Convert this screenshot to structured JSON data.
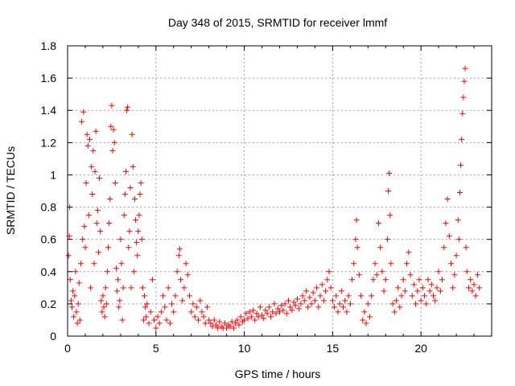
{
  "chart_data": {
    "type": "scatter",
    "title": "Day 348 of 2015, SRMTID for receiver lmmf",
    "xlabel": "GPS time / hours",
    "ylabel": "SRMTID / TECUs",
    "xlim": [
      0,
      24
    ],
    "ylim": [
      0,
      1.8
    ],
    "xticks": [
      0,
      5,
      10,
      15,
      20
    ],
    "yticks": [
      0,
      0.2,
      0.4,
      0.6,
      0.8,
      1,
      1.2,
      1.4,
      1.6,
      1.8
    ],
    "ytick_labels": [
      "0",
      "0.2",
      "0.4",
      "0.6",
      "0.8",
      "1",
      "1.2",
      "1.4",
      "1.6",
      "1.8"
    ],
    "grid": true,
    "marker": "+",
    "color": "#ff0000",
    "series": [
      {
        "name": "SRMTID",
        "points": [
          [
            0.05,
            0.5
          ],
          [
            0.1,
            0.62
          ],
          [
            0.12,
            0.8
          ],
          [
            0.15,
            0.35
          ],
          [
            0.2,
            0.22
          ],
          [
            0.25,
            0.18
          ],
          [
            0.3,
            0.28
          ],
          [
            0.35,
            0.12
          ],
          [
            0.4,
            0.25
          ],
          [
            0.45,
            0.4
          ],
          [
            0.5,
            0.15
          ],
          [
            0.55,
            0.08
          ],
          [
            0.6,
            0.2
          ],
          [
            0.65,
            0.33
          ],
          [
            0.7,
            0.1
          ],
          [
            0.75,
            0.45
          ],
          [
            0.8,
            1.33
          ],
          [
            0.85,
            0.6
          ],
          [
            0.9,
            1.39
          ],
          [
            0.95,
            0.68
          ],
          [
            1.0,
            0.55
          ],
          [
            1.05,
            0.95
          ],
          [
            1.1,
            1.25
          ],
          [
            1.15,
            1.18
          ],
          [
            1.2,
            0.75
          ],
          [
            1.25,
            1.22
          ],
          [
            1.3,
            0.3
          ],
          [
            1.35,
            1.05
          ],
          [
            1.4,
            0.88
          ],
          [
            1.45,
            1.15
          ],
          [
            1.5,
            0.45
          ],
          [
            1.55,
            1.02
          ],
          [
            1.6,
            1.27
          ],
          [
            1.65,
            0.7
          ],
          [
            1.7,
            0.78
          ],
          [
            1.75,
            0.52
          ],
          [
            1.8,
            0.98
          ],
          [
            1.85,
            0.65
          ],
          [
            1.9,
            0.22
          ],
          [
            1.95,
            0.15
          ],
          [
            2.0,
            0.25
          ],
          [
            2.05,
            0.18
          ],
          [
            2.1,
            0.12
          ],
          [
            2.15,
            0.3
          ],
          [
            2.2,
            0.2
          ],
          [
            2.25,
            0.4
          ],
          [
            2.3,
            0.55
          ],
          [
            2.35,
            0.7
          ],
          [
            2.4,
            0.85
          ],
          [
            2.45,
            1.3
          ],
          [
            2.5,
            1.43
          ],
          [
            2.55,
            1.15
          ],
          [
            2.6,
            1.28
          ],
          [
            2.65,
            1.2
          ],
          [
            2.7,
            0.95
          ],
          [
            2.75,
            0.42
          ],
          [
            2.8,
            0.28
          ],
          [
            2.85,
            0.35
          ],
          [
            2.9,
            0.18
          ],
          [
            2.95,
            0.22
          ],
          [
            3.0,
            0.6
          ],
          [
            3.05,
            0.45
          ],
          [
            3.1,
            0.1
          ],
          [
            3.15,
            0.3
          ],
          [
            3.2,
            0.75
          ],
          [
            3.25,
            0.88
          ],
          [
            3.3,
            1.02
          ],
          [
            3.35,
            1.4
          ],
          [
            3.4,
            1.42
          ],
          [
            3.45,
            0.55
          ],
          [
            3.5,
            0.65
          ],
          [
            3.55,
            0.92
          ],
          [
            3.6,
            0.3
          ],
          [
            3.65,
            1.25
          ],
          [
            3.7,
            1.05
          ],
          [
            3.75,
            0.4
          ],
          [
            3.8,
            0.85
          ],
          [
            3.85,
            0.72
          ],
          [
            3.9,
            0.58
          ],
          [
            3.95,
            0.5
          ],
          [
            4.0,
            0.65
          ],
          [
            4.05,
            0.75
          ],
          [
            4.1,
            0.88
          ],
          [
            4.15,
            0.95
          ],
          [
            4.2,
            0.6
          ],
          [
            4.25,
            0.3
          ],
          [
            4.3,
            0.1
          ],
          [
            4.35,
            0.25
          ],
          [
            4.4,
            0.18
          ],
          [
            4.45,
            0.12
          ],
          [
            4.5,
            0.2
          ],
          [
            4.6,
            0.08
          ],
          [
            4.7,
            0.15
          ],
          [
            4.8,
            0.35
          ],
          [
            4.9,
            0.1
          ],
          [
            5.0,
            0.05
          ],
          [
            5.1,
            0.12
          ],
          [
            5.2,
            0.08
          ],
          [
            5.3,
            0.15
          ],
          [
            5.4,
            0.25
          ],
          [
            5.5,
            0.18
          ],
          [
            5.6,
            0.1
          ],
          [
            5.7,
            0.3
          ],
          [
            5.8,
            0.08
          ],
          [
            5.9,
            0.2
          ],
          [
            6.0,
            0.15
          ],
          [
            6.1,
            0.25
          ],
          [
            6.2,
            0.4
          ],
          [
            6.3,
            0.5
          ],
          [
            6.35,
            0.54
          ],
          [
            6.4,
            0.35
          ],
          [
            6.5,
            0.22
          ],
          [
            6.6,
            0.3
          ],
          [
            6.7,
            0.45
          ],
          [
            6.8,
            0.38
          ],
          [
            6.9,
            0.25
          ],
          [
            7.0,
            0.15
          ],
          [
            7.1,
            0.2
          ],
          [
            7.2,
            0.12
          ],
          [
            7.3,
            0.18
          ],
          [
            7.4,
            0.1
          ],
          [
            7.5,
            0.22
          ],
          [
            7.6,
            0.15
          ],
          [
            7.7,
            0.12
          ],
          [
            7.8,
            0.08
          ],
          [
            7.9,
            0.18
          ],
          [
            8.0,
            0.1
          ],
          [
            8.1,
            0.08
          ],
          [
            8.2,
            0.06
          ],
          [
            8.3,
            0.1
          ],
          [
            8.4,
            0.07
          ],
          [
            8.5,
            0.05
          ],
          [
            8.6,
            0.09
          ],
          [
            8.7,
            0.06
          ],
          [
            8.8,
            0.05
          ],
          [
            8.9,
            0.08
          ],
          [
            9.0,
            0.05
          ],
          [
            9.1,
            0.07
          ],
          [
            9.2,
            0.06
          ],
          [
            9.3,
            0.09
          ],
          [
            9.4,
            0.05
          ],
          [
            9.5,
            0.08
          ],
          [
            9.6,
            0.1
          ],
          [
            9.7,
            0.07
          ],
          [
            9.8,
            0.12
          ],
          [
            9.9,
            0.09
          ],
          [
            10.0,
            0.1
          ],
          [
            10.1,
            0.14
          ],
          [
            10.2,
            0.11
          ],
          [
            10.3,
            0.15
          ],
          [
            10.4,
            0.12
          ],
          [
            10.5,
            0.16
          ],
          [
            10.6,
            0.1
          ],
          [
            10.7,
            0.14
          ],
          [
            10.8,
            0.12
          ],
          [
            10.9,
            0.18
          ],
          [
            11.0,
            0.13
          ],
          [
            11.1,
            0.11
          ],
          [
            11.2,
            0.16
          ],
          [
            11.3,
            0.14
          ],
          [
            11.4,
            0.18
          ],
          [
            11.5,
            0.12
          ],
          [
            11.6,
            0.15
          ],
          [
            11.7,
            0.2
          ],
          [
            11.8,
            0.14
          ],
          [
            11.9,
            0.17
          ],
          [
            12.0,
            0.15
          ],
          [
            12.1,
            0.19
          ],
          [
            12.2,
            0.16
          ],
          [
            12.3,
            0.2
          ],
          [
            12.4,
            0.14
          ],
          [
            12.5,
            0.22
          ],
          [
            12.6,
            0.18
          ],
          [
            12.7,
            0.16
          ],
          [
            12.8,
            0.21
          ],
          [
            12.9,
            0.19
          ],
          [
            13.0,
            0.23
          ],
          [
            13.1,
            0.17
          ],
          [
            13.2,
            0.2
          ],
          [
            13.3,
            0.25
          ],
          [
            13.4,
            0.22
          ],
          [
            13.5,
            0.28
          ],
          [
            13.6,
            0.18
          ],
          [
            13.7,
            0.24
          ],
          [
            13.8,
            0.2
          ],
          [
            13.9,
            0.27
          ],
          [
            14.0,
            0.22
          ],
          [
            14.1,
            0.3
          ],
          [
            14.2,
            0.18
          ],
          [
            14.3,
            0.25
          ],
          [
            14.4,
            0.32
          ],
          [
            14.5,
            0.22
          ],
          [
            14.6,
            0.28
          ],
          [
            14.7,
            0.35
          ],
          [
            14.8,
            0.4
          ],
          [
            14.9,
            0.3
          ],
          [
            15.0,
            0.22
          ],
          [
            15.1,
            0.18
          ],
          [
            15.2,
            0.25
          ],
          [
            15.3,
            0.15
          ],
          [
            15.4,
            0.2
          ],
          [
            15.5,
            0.28
          ],
          [
            15.6,
            0.18
          ],
          [
            15.7,
            0.22
          ],
          [
            15.8,
            0.15
          ],
          [
            15.9,
            0.25
          ],
          [
            16.0,
            0.2
          ],
          [
            16.1,
            0.35
          ],
          [
            16.2,
            0.45
          ],
          [
            16.3,
            0.6
          ],
          [
            16.35,
            0.72
          ],
          [
            16.4,
            0.55
          ],
          [
            16.5,
            0.38
          ],
          [
            16.6,
            0.25
          ],
          [
            16.7,
            0.1
          ],
          [
            16.8,
            0.15
          ],
          [
            16.9,
            0.08
          ],
          [
            17.0,
            0.2
          ],
          [
            17.1,
            0.12
          ],
          [
            17.2,
            0.25
          ],
          [
            17.3,
            0.35
          ],
          [
            17.4,
            0.45
          ],
          [
            17.5,
            0.38
          ],
          [
            17.6,
            0.7
          ],
          [
            17.7,
            0.55
          ],
          [
            17.8,
            0.4
          ],
          [
            17.9,
            0.28
          ],
          [
            18.0,
            0.35
          ],
          [
            18.1,
            0.6
          ],
          [
            18.15,
            0.9
          ],
          [
            18.2,
            1.01
          ],
          [
            18.25,
            0.75
          ],
          [
            18.3,
            0.45
          ],
          [
            18.4,
            0.2
          ],
          [
            18.5,
            0.15
          ],
          [
            18.6,
            0.22
          ],
          [
            18.7,
            0.3
          ],
          [
            18.8,
            0.18
          ],
          [
            18.9,
            0.25
          ],
          [
            19.0,
            0.35
          ],
          [
            19.1,
            0.28
          ],
          [
            19.2,
            0.45
          ],
          [
            19.3,
            0.52
          ],
          [
            19.4,
            0.38
          ],
          [
            19.5,
            0.25
          ],
          [
            19.6,
            0.32
          ],
          [
            19.7,
            0.2
          ],
          [
            19.8,
            0.28
          ],
          [
            19.9,
            0.35
          ],
          [
            20.0,
            0.22
          ],
          [
            20.1,
            0.3
          ],
          [
            20.2,
            0.25
          ],
          [
            20.3,
            0.2
          ],
          [
            20.4,
            0.35
          ],
          [
            20.5,
            0.28
          ],
          [
            20.6,
            0.32
          ],
          [
            20.7,
            0.25
          ],
          [
            20.8,
            0.22
          ],
          [
            20.9,
            0.3
          ],
          [
            21.0,
            0.4
          ],
          [
            21.1,
            0.28
          ],
          [
            21.2,
            0.35
          ],
          [
            21.3,
            0.55
          ],
          [
            21.4,
            0.7
          ],
          [
            21.5,
            0.85
          ],
          [
            21.6,
            0.62
          ],
          [
            21.7,
            0.45
          ],
          [
            21.8,
            0.3
          ],
          [
            21.9,
            0.38
          ],
          [
            22.0,
            0.5
          ],
          [
            22.1,
            0.72
          ],
          [
            22.15,
            0.6
          ],
          [
            22.2,
            0.89
          ],
          [
            22.25,
            1.06
          ],
          [
            22.3,
            1.22
          ],
          [
            22.35,
            1.38
          ],
          [
            22.4,
            1.48
          ],
          [
            22.45,
            1.58
          ],
          [
            22.5,
            1.66
          ],
          [
            22.55,
            0.55
          ],
          [
            22.6,
            0.4
          ],
          [
            22.7,
            0.3
          ],
          [
            22.8,
            0.35
          ],
          [
            22.9,
            0.28
          ],
          [
            23.0,
            0.32
          ],
          [
            23.1,
            0.25
          ],
          [
            23.2,
            0.38
          ],
          [
            23.3,
            0.3
          ]
        ]
      }
    ]
  }
}
